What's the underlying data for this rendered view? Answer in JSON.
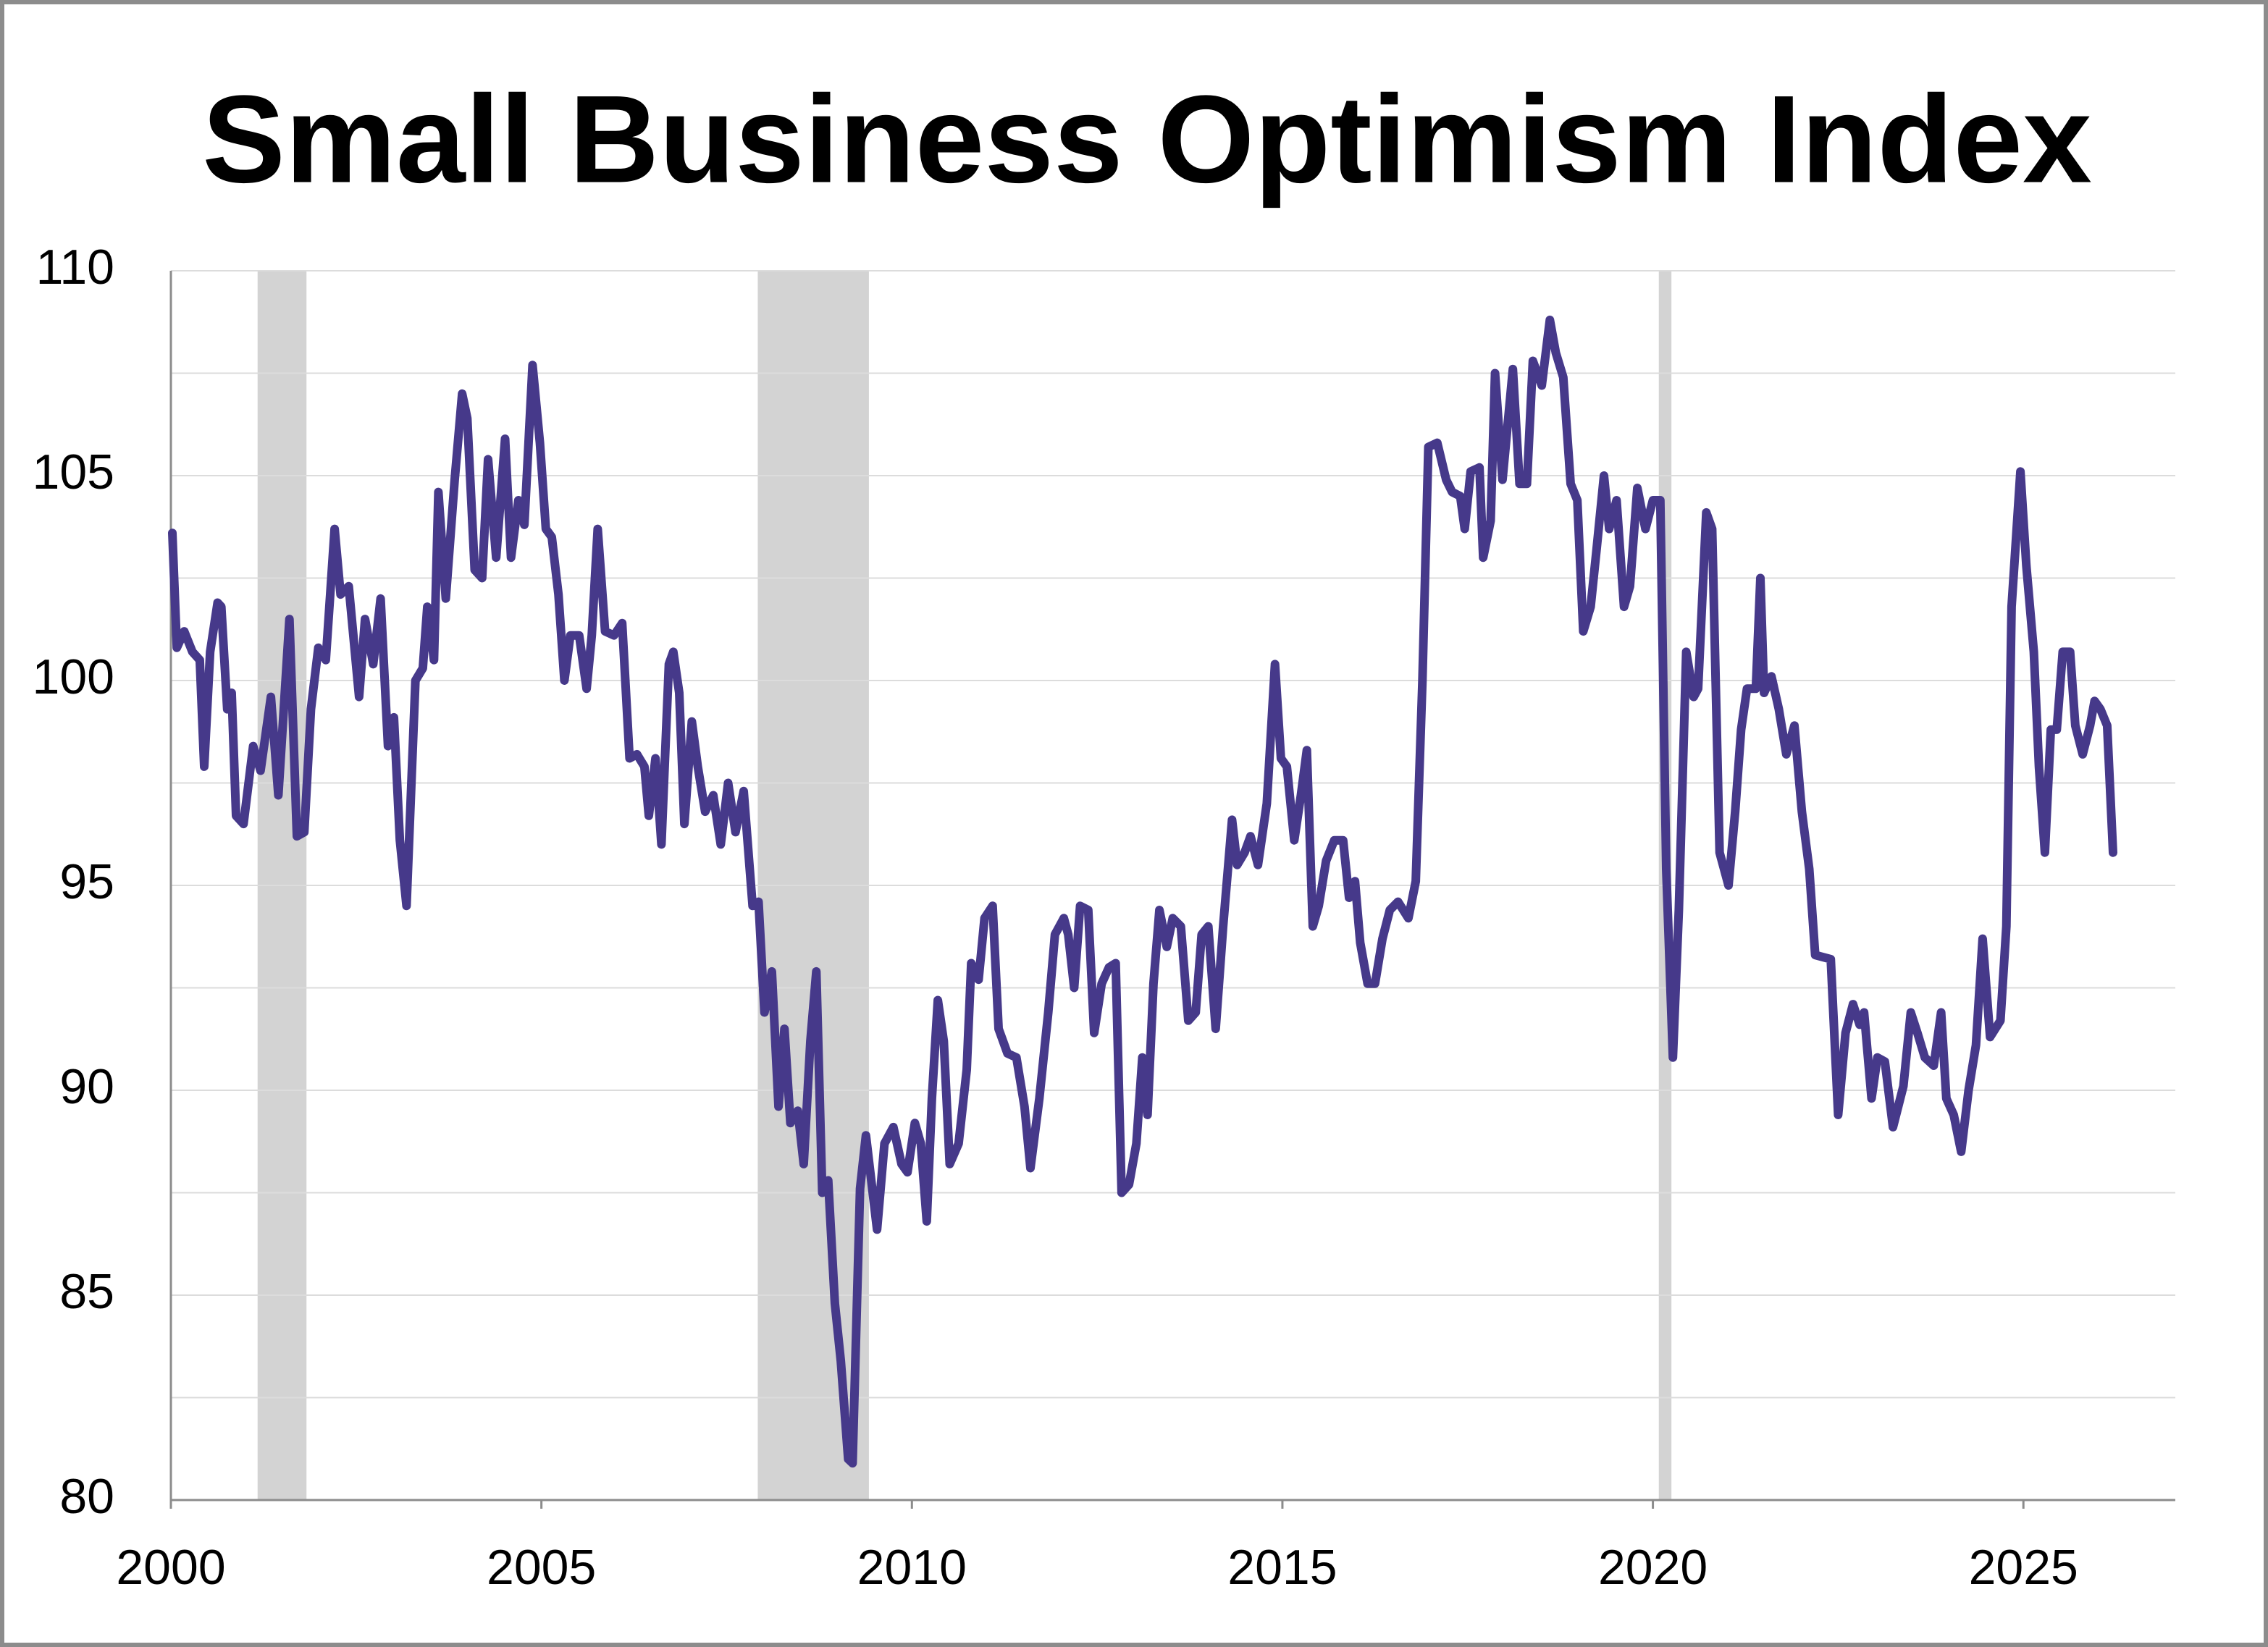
{
  "chart_data": {
    "type": "line",
    "title": "Small Business Optimism Index",
    "x": [
      2000.02,
      2000.08,
      2000.18,
      2000.29,
      2000.39,
      2000.45,
      2000.53,
      2000.63,
      2000.68,
      2000.76,
      2000.82,
      2000.88,
      2000.98,
      2001.11,
      2001.21,
      2001.35,
      2001.45,
      2001.6,
      2001.7,
      2001.8,
      2001.89,
      2001.99,
      2002.09,
      2002.21,
      2002.29,
      2002.4,
      2002.54,
      2002.62,
      2002.73,
      2002.83,
      2002.93,
      2003.01,
      2003.09,
      2003.18,
      2003.3,
      2003.4,
      2003.46,
      2003.55,
      2003.61,
      2003.71,
      2003.83,
      2003.93,
      2004.0,
      2004.1,
      2004.2,
      2004.28,
      2004.39,
      2004.51,
      2004.59,
      2004.69,
      2004.77,
      2004.88,
      2004.98,
      2005.06,
      2005.14,
      2005.23,
      2005.31,
      2005.39,
      2005.51,
      2005.61,
      2005.68,
      2005.76,
      2005.86,
      2005.98,
      2006.09,
      2006.19,
      2006.29,
      2006.39,
      2006.45,
      2006.54,
      2006.62,
      2006.72,
      2006.78,
      2006.86,
      2006.93,
      2007.03,
      2007.11,
      2007.21,
      2007.32,
      2007.42,
      2007.52,
      2007.62,
      2007.73,
      2007.85,
      2007.93,
      2008.01,
      2008.11,
      2008.2,
      2008.28,
      2008.36,
      2008.46,
      2008.54,
      2008.63,
      2008.71,
      2008.79,
      2008.87,
      2008.96,
      2009.04,
      2009.14,
      2009.2,
      2009.3,
      2009.38,
      2009.53,
      2009.63,
      2009.75,
      2009.86,
      2009.94,
      2010.04,
      2010.12,
      2010.2,
      2010.27,
      2010.35,
      2010.43,
      2010.51,
      2010.63,
      2010.74,
      2010.8,
      2010.9,
      2010.98,
      2011.09,
      2011.17,
      2011.29,
      2011.41,
      2011.52,
      2011.6,
      2011.72,
      2011.84,
      2011.93,
      2012.05,
      2012.11,
      2012.19,
      2012.27,
      2012.38,
      2012.46,
      2012.56,
      2012.66,
      2012.75,
      2012.83,
      2012.93,
      2013.03,
      2013.11,
      2013.18,
      2013.26,
      2013.34,
      2013.44,
      2013.52,
      2013.63,
      2013.73,
      2013.83,
      2013.91,
      2014.0,
      2014.1,
      2014.2,
      2014.32,
      2014.39,
      2014.49,
      2014.57,
      2014.67,
      2014.79,
      2014.9,
      2014.98,
      2015.06,
      2015.16,
      2015.25,
      2015.33,
      2015.41,
      2015.49,
      2015.59,
      2015.7,
      2015.82,
      2015.9,
      2015.98,
      2016.05,
      2016.15,
      2016.25,
      2016.35,
      2016.45,
      2016.56,
      2016.7,
      2016.8,
      2016.89,
      2016.97,
      2017.09,
      2017.21,
      2017.29,
      2017.4,
      2017.46,
      2017.54,
      2017.66,
      2017.71,
      2017.81,
      2017.87,
      2017.97,
      2018.11,
      2018.2,
      2018.3,
      2018.38,
      2018.5,
      2018.61,
      2018.69,
      2018.79,
      2018.89,
      2018.98,
      2019.06,
      2019.16,
      2019.24,
      2019.34,
      2019.41,
      2019.51,
      2019.61,
      2019.69,
      2019.79,
      2019.9,
      2020.0,
      2020.1,
      2020.18,
      2020.27,
      2020.35,
      2020.45,
      2020.55,
      2020.61,
      2020.72,
      2020.8,
      2020.9,
      2021.02,
      2021.11,
      2021.19,
      2021.27,
      2021.39,
      2021.45,
      2021.5,
      2021.6,
      2021.7,
      2021.8,
      2021.91,
      2022.01,
      2022.11,
      2022.19,
      2022.4,
      2022.5,
      2022.6,
      2022.7,
      2022.79,
      2022.85,
      2022.95,
      2023.03,
      2023.13,
      2023.24,
      2023.38,
      2023.48,
      2023.57,
      2023.67,
      2023.79,
      2023.89,
      2023.96,
      2024.06,
      2024.16,
      2024.26,
      2024.36,
      2024.45,
      2024.55,
      2024.69,
      2024.77,
      2024.84,
      2024.96,
      2025.04,
      2025.14,
      2025.21,
      2025.29,
      2025.37,
      2025.45,
      2025.53,
      2025.63,
      2025.7,
      2025.8,
      2025.9,
      2025.96,
      2026.04,
      2026.13,
      2026.21
    ],
    "values": [
      103.6,
      100.8,
      101.2,
      100.7,
      100.5,
      97.9,
      100.7,
      101.9,
      101.8,
      99.3,
      99.7,
      96.7,
      96.5,
      98.4,
      97.8,
      99.6,
      97.2,
      101.5,
      96.2,
      96.3,
      99.3,
      100.8,
      100.5,
      103.7,
      102.1,
      102.3,
      99.6,
      101.5,
      100.4,
      102.0,
      98.4,
      99.1,
      96.1,
      94.5,
      100.0,
      100.3,
      101.8,
      100.5,
      104.6,
      102.0,
      104.9,
      107.0,
      106.4,
      102.7,
      102.5,
      105.4,
      103.0,
      105.9,
      103.0,
      104.4,
      103.8,
      107.7,
      105.8,
      103.7,
      103.5,
      102.1,
      100.0,
      101.1,
      101.1,
      99.8,
      101.1,
      103.7,
      101.2,
      101.1,
      101.4,
      98.1,
      98.2,
      97.9,
      96.7,
      98.1,
      96.0,
      100.4,
      100.7,
      99.7,
      96.5,
      99.0,
      97.9,
      96.8,
      97.2,
      96.0,
      97.5,
      96.3,
      97.3,
      94.5,
      94.6,
      91.9,
      92.9,
      89.6,
      91.5,
      89.2,
      89.5,
      88.2,
      91.2,
      92.9,
      87.5,
      87.8,
      84.8,
      83.4,
      81.0,
      80.9,
      87.6,
      88.9,
      86.6,
      88.7,
      89.1,
      88.2,
      88.0,
      89.2,
      88.7,
      86.8,
      89.8,
      92.2,
      91.2,
      88.2,
      88.7,
      90.5,
      93.1,
      92.7,
      94.2,
      94.5,
      91.5,
      90.9,
      90.8,
      89.6,
      88.1,
      89.8,
      91.9,
      93.8,
      94.2,
      93.8,
      92.5,
      94.5,
      94.4,
      91.4,
      92.6,
      93.0,
      93.1,
      87.5,
      87.7,
      88.7,
      90.8,
      89.4,
      92.6,
      94.4,
      93.5,
      94.2,
      94.0,
      91.7,
      91.9,
      93.8,
      94.0,
      91.5,
      94.0,
      96.6,
      95.5,
      95.8,
      96.2,
      95.5,
      97.0,
      100.4,
      98.1,
      97.9,
      96.1,
      97.2,
      98.3,
      94.0,
      94.5,
      95.6,
      96.1,
      96.1,
      94.7,
      95.1,
      93.6,
      92.6,
      92.6,
      93.7,
      94.4,
      94.6,
      94.2,
      95.1,
      100.0,
      105.7,
      105.8,
      104.9,
      104.6,
      104.5,
      103.7,
      105.1,
      105.2,
      103.0,
      103.9,
      107.5,
      104.9,
      107.6,
      104.8,
      104.8,
      107.8,
      107.2,
      108.8,
      108.0,
      107.4,
      104.8,
      104.4,
      101.2,
      101.8,
      103.2,
      105.0,
      103.7,
      104.4,
      101.8,
      102.3,
      104.7,
      103.7,
      104.4,
      104.4,
      95.4,
      90.8,
      94.4,
      100.7,
      99.6,
      99.8,
      104.1,
      103.7,
      95.8,
      95.0,
      96.8,
      98.8,
      99.8,
      99.8,
      102.5,
      99.7,
      100.1,
      99.3,
      98.2,
      98.9,
      96.8,
      95.4,
      93.3,
      93.2,
      89.4,
      91.4,
      92.1,
      91.6,
      91.9,
      89.8,
      90.8,
      90.7,
      89.1,
      90.1,
      91.9,
      91.4,
      90.8,
      90.6,
      91.9,
      89.8,
      89.4,
      88.5,
      90.0,
      91.1,
      93.7,
      91.3,
      91.7,
      94.0,
      101.8,
      105.1,
      102.8,
      100.7,
      97.9,
      95.8,
      98.8,
      98.8,
      100.7,
      100.7,
      98.9,
      98.2,
      98.9,
      99.5,
      99.3,
      98.9,
      95.8
    ],
    "color": "#46398a",
    "shaded_ranges": [
      [
        2001.17,
        2001.83
      ],
      [
        2007.92,
        2009.42
      ],
      [
        2020.08,
        2020.25
      ]
    ],
    "shade_color": "#d3d3d3",
    "xlim": [
      2000,
      2027.05
    ],
    "xticks": [
      2000,
      2005,
      2010,
      2015,
      2020,
      2025
    ],
    "ylim": [
      80,
      110
    ],
    "yticks": [
      80,
      85,
      90,
      95,
      100,
      105,
      110
    ],
    "minor_yticks": [
      82.5,
      87.5,
      92.5,
      97.5,
      102.5,
      107.5
    ],
    "grid": true
  }
}
